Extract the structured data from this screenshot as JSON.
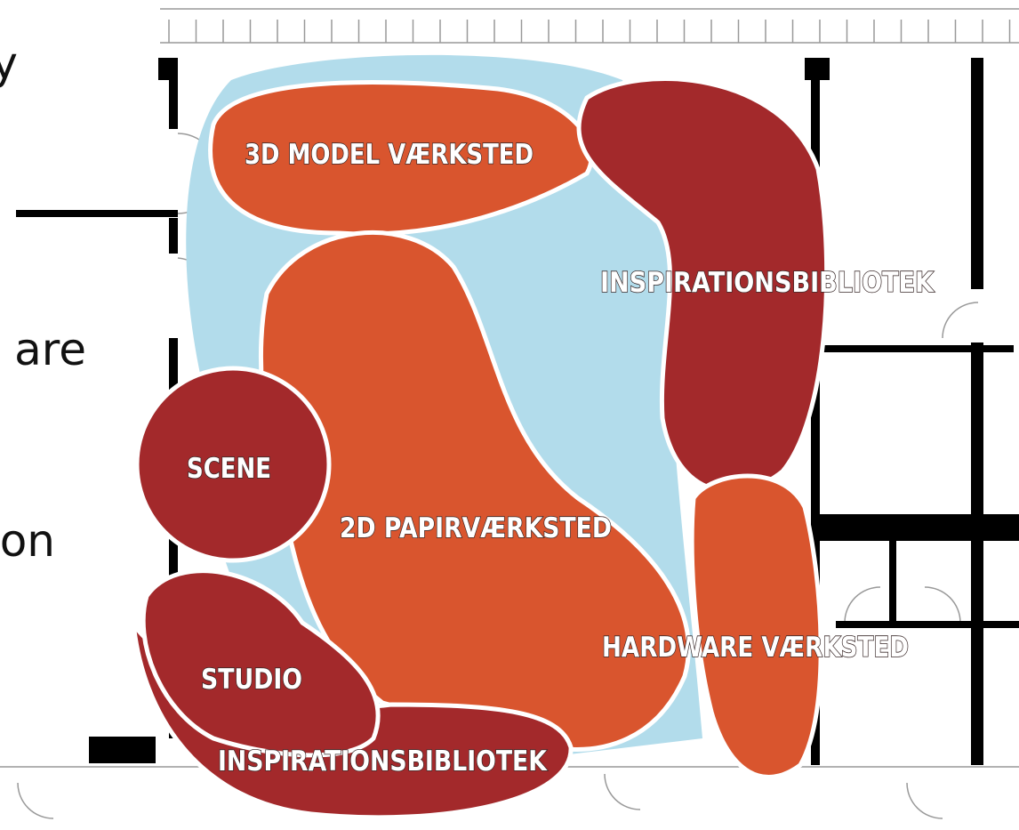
{
  "side_text": [
    "y",
    "are",
    "on"
  ],
  "zones": [
    {
      "label": "3D MODEL VÆRKSTED"
    },
    {
      "label": "INSPIRATIONSBIBLIOTEK"
    },
    {
      "label": "SCENE"
    },
    {
      "label": "2D PAPIRVÆRKSTED"
    },
    {
      "label": "HARDWARE VÆRKSTED"
    },
    {
      "label": "STUDIO"
    },
    {
      "label": "INSPIRATIONSBIBLIOTEK"
    }
  ]
}
